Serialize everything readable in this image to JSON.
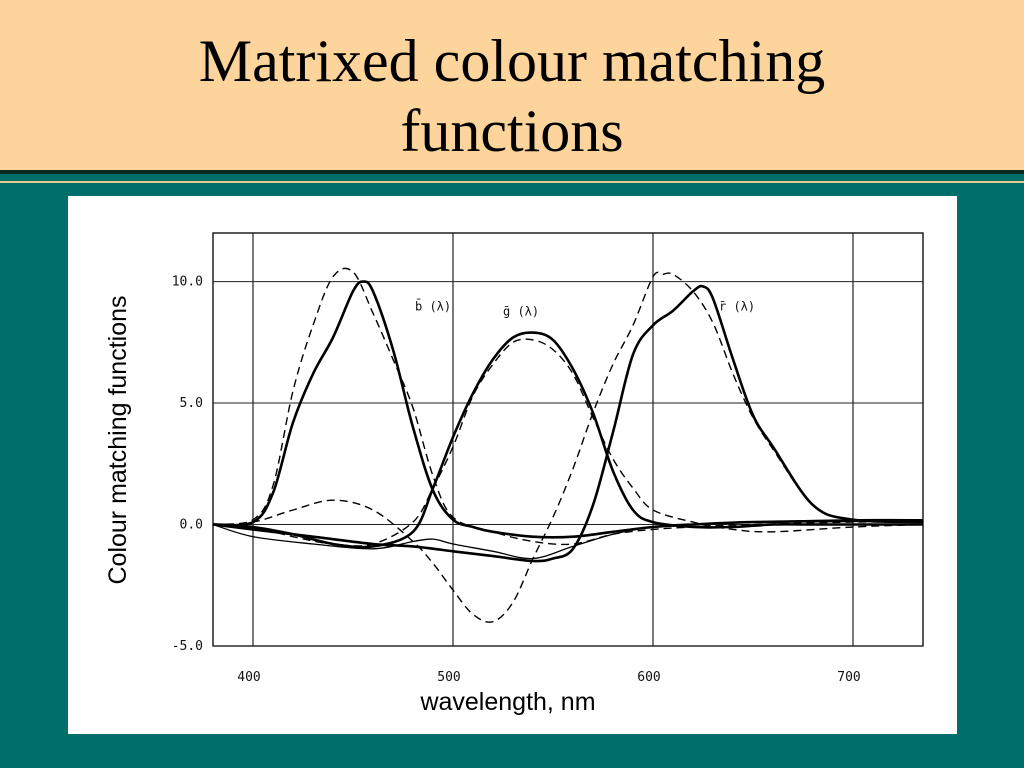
{
  "slide": {
    "title_line1": "Matrixed colour matching",
    "title_line2": "functions",
    "colors": {
      "title_band": "#fdd59c",
      "background": "#006f6a",
      "panel": "#ffffff",
      "ink": "#000000"
    }
  },
  "chart_data": {
    "type": "line",
    "title": "",
    "xlabel": "wavelength, nm",
    "ylabel": "Colour matching functions",
    "xlim": [
      380,
      735
    ],
    "ylim": [
      -5,
      12
    ],
    "xticks": [
      400,
      500,
      600,
      700
    ],
    "xtick_labels": [
      "400",
      "500",
      "600",
      "700"
    ],
    "yticks": [
      -5,
      0,
      5,
      10
    ],
    "ytick_labels": [
      "-5.0",
      "0.0",
      "5.0",
      "10.0"
    ],
    "grid": true,
    "legend": "none",
    "annotations": [
      {
        "text": "b̄ (λ)",
        "x": 481,
        "y": 8.8
      },
      {
        "text": "ḡ (λ)",
        "x": 525,
        "y": 8.6
      },
      {
        "text": "r̄ (λ)",
        "x": 633,
        "y": 8.8
      }
    ],
    "series": [
      {
        "style": "solid-bold",
        "x": [
          380,
          400,
          410,
          420,
          430,
          440,
          450,
          455,
          460,
          470,
          480,
          490,
          500,
          510,
          520,
          540,
          560,
          580,
          600,
          620,
          650,
          700,
          735
        ],
        "y": [
          0,
          0.1,
          1.3,
          4.2,
          6.2,
          7.7,
          9.6,
          10.0,
          9.6,
          7.2,
          4.0,
          1.4,
          0.2,
          -0.1,
          -0.3,
          -0.5,
          -0.5,
          -0.3,
          -0.1,
          0,
          0.1,
          0.15,
          0.15
        ]
      },
      {
        "style": "solid-bold",
        "x": [
          380,
          400,
          420,
          440,
          460,
          480,
          490,
          500,
          510,
          520,
          530,
          540,
          550,
          560,
          570,
          580,
          590,
          600,
          620,
          640,
          660,
          680,
          735
        ],
        "y": [
          0,
          -0.1,
          -0.4,
          -0.8,
          -0.9,
          -0.3,
          1.5,
          3.6,
          5.4,
          6.8,
          7.7,
          7.9,
          7.6,
          6.4,
          4.6,
          2.2,
          0.6,
          0.1,
          -0.1,
          -0.1,
          0,
          0,
          0
        ]
      },
      {
        "style": "solid-bold",
        "x": [
          380,
          400,
          430,
          460,
          480,
          500,
          520,
          540,
          550,
          560,
          570,
          580,
          590,
          600,
          610,
          620,
          625,
          630,
          640,
          650,
          660,
          680,
          700,
          735
        ],
        "y": [
          0,
          -0.2,
          -0.5,
          -0.8,
          -0.9,
          -1.1,
          -1.3,
          -1.5,
          -1.4,
          -1.0,
          0.8,
          3.8,
          7.0,
          8.2,
          8.8,
          9.6,
          9.8,
          9.3,
          6.8,
          4.5,
          3.2,
          0.8,
          0.2,
          0.1
        ]
      },
      {
        "style": "solid-thin",
        "x": [
          380,
          400,
          430,
          460,
          480,
          490,
          500,
          520,
          540,
          560,
          580,
          600,
          620,
          650,
          700,
          735
        ],
        "y": [
          0,
          -0.5,
          -0.8,
          -1.0,
          -0.7,
          -0.6,
          -0.8,
          -1.1,
          -1.4,
          -0.9,
          -0.4,
          -0.1,
          0,
          0.1,
          0.2,
          0.2
        ]
      },
      {
        "style": "dashed",
        "x": [
          380,
          400,
          410,
          420,
          430,
          440,
          450,
          460,
          470,
          480,
          490,
          500,
          520,
          540,
          560,
          580,
          600,
          620,
          650,
          700,
          735
        ],
        "y": [
          0,
          0.2,
          1.6,
          5.5,
          8.2,
          10.2,
          10.4,
          8.7,
          6.8,
          4.8,
          2.0,
          0.3,
          -0.3,
          -0.7,
          -0.8,
          -0.4,
          -0.2,
          -0.1,
          0,
          0.1,
          0.1
        ]
      },
      {
        "style": "dashed",
        "x": [
          380,
          400,
          420,
          440,
          460,
          480,
          490,
          500,
          510,
          520,
          530,
          540,
          550,
          560,
          570,
          580,
          590,
          600,
          620,
          640,
          660,
          700,
          735
        ],
        "y": [
          0,
          -0.1,
          -0.5,
          -0.8,
          -0.8,
          0.1,
          1.5,
          3.2,
          5.3,
          6.6,
          7.5,
          7.6,
          7.2,
          6.2,
          4.4,
          2.7,
          1.5,
          0.6,
          0.1,
          -0.2,
          -0.3,
          -0.1,
          0
        ]
      },
      {
        "style": "dashed",
        "x": [
          380,
          400,
          420,
          440,
          460,
          480,
          490,
          500,
          510,
          520,
          530,
          540,
          550,
          560,
          570,
          580,
          590,
          600,
          605,
          610,
          620,
          630,
          640,
          650,
          660,
          680,
          700,
          735
        ],
        "y": [
          0,
          0.1,
          0.6,
          1.0,
          0.6,
          -0.7,
          -1.6,
          -2.7,
          -3.7,
          -4.0,
          -3.2,
          -1.4,
          0.3,
          2.3,
          4.6,
          6.6,
          8.2,
          10.2,
          10.3,
          10.3,
          9.6,
          8.3,
          6.2,
          4.4,
          3.1,
          0.8,
          0.2,
          0.1
        ]
      }
    ]
  }
}
